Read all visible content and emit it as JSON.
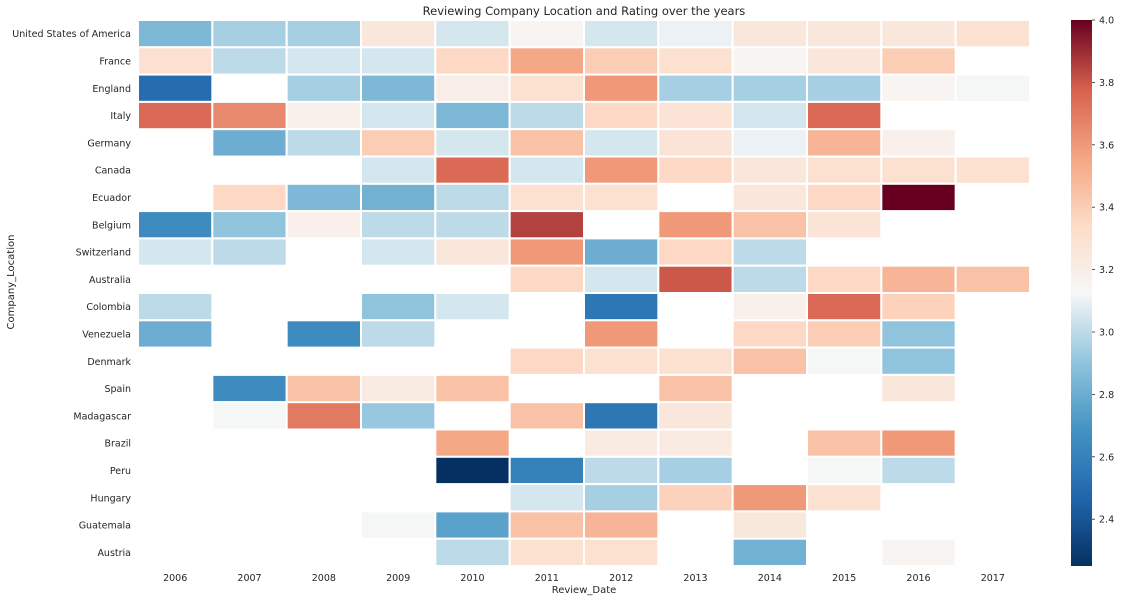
{
  "chart_data": {
    "type": "heatmap",
    "title": "Reviewing Company Location and Rating over the years",
    "xlabel": "Review_Date",
    "ylabel": "Company_Location",
    "x": [
      "2006",
      "2007",
      "2008",
      "2009",
      "2010",
      "2011",
      "2012",
      "2013",
      "2014",
      "2015",
      "2016",
      "2017"
    ],
    "y": [
      "United States of America",
      "France",
      "England",
      "Italy",
      "Germany",
      "Canada",
      "Ecuador",
      "Belgium",
      "Switzerland",
      "Australia",
      "Colombia",
      "Venezuela",
      "Denmark",
      "Spain",
      "Madagascar",
      "Brazil",
      "Peru",
      "Hungary",
      "Guatemala",
      "Austria"
    ],
    "values": [
      [
        2.85,
        2.95,
        2.95,
        3.25,
        3.05,
        3.15,
        3.05,
        3.1,
        3.25,
        3.25,
        3.25,
        3.3
      ],
      [
        3.3,
        3.0,
        3.05,
        3.05,
        3.35,
        3.55,
        3.4,
        3.3,
        3.15,
        3.25,
        3.4,
        null
      ],
      [
        2.5,
        null,
        2.95,
        2.85,
        3.2,
        3.3,
        3.6,
        2.95,
        2.95,
        2.95,
        3.15,
        3.12
      ],
      [
        3.75,
        3.65,
        3.18,
        3.05,
        2.85,
        3.0,
        3.35,
        3.28,
        3.05,
        3.75,
        null,
        null
      ],
      [
        null,
        2.8,
        3.0,
        3.4,
        3.05,
        3.45,
        3.05,
        3.28,
        3.1,
        3.5,
        3.18,
        null
      ],
      [
        null,
        null,
        null,
        3.05,
        3.75,
        3.05,
        3.6,
        3.35,
        3.25,
        3.3,
        3.3,
        3.3
      ],
      [
        null,
        3.35,
        2.85,
        2.82,
        3.0,
        3.3,
        3.3,
        null,
        3.25,
        3.35,
        4.0,
        null
      ],
      [
        2.65,
        2.9,
        3.18,
        3.0,
        3.0,
        3.85,
        null,
        3.6,
        3.45,
        3.28,
        null,
        null
      ],
      [
        3.05,
        3.0,
        null,
        3.05,
        3.25,
        3.6,
        2.8,
        3.35,
        3.0,
        null,
        null,
        null
      ],
      [
        null,
        null,
        null,
        null,
        null,
        3.35,
        3.05,
        3.8,
        3.0,
        3.35,
        3.5,
        3.45
      ],
      [
        3.0,
        null,
        null,
        2.9,
        3.05,
        null,
        2.55,
        null,
        3.18,
        3.75,
        3.38,
        null
      ],
      [
        2.8,
        null,
        2.65,
        3.0,
        null,
        null,
        3.6,
        null,
        3.35,
        3.4,
        2.9,
        null
      ],
      [
        null,
        null,
        null,
        null,
        null,
        3.35,
        3.3,
        3.3,
        3.45,
        3.12,
        2.9,
        null
      ],
      [
        null,
        2.65,
        3.45,
        3.22,
        3.45,
        null,
        null,
        3.45,
        null,
        null,
        3.25,
        null
      ],
      [
        null,
        3.12,
        3.7,
        2.92,
        null,
        3.45,
        2.55,
        3.25,
        null,
        null,
        null,
        null
      ],
      [
        null,
        null,
        null,
        null,
        3.55,
        null,
        3.22,
        3.22,
        null,
        3.45,
        3.6,
        null
      ],
      [
        null,
        null,
        null,
        null,
        2.25,
        2.6,
        3.0,
        2.95,
        null,
        3.12,
        3.0,
        null
      ],
      [
        null,
        null,
        null,
        null,
        null,
        3.05,
        2.95,
        3.38,
        3.6,
        3.3,
        null,
        null
      ],
      [
        null,
        null,
        null,
        3.12,
        2.75,
        3.45,
        3.5,
        null,
        3.25,
        null,
        null,
        null
      ],
      [
        null,
        null,
        null,
        null,
        3.0,
        3.3,
        3.3,
        null,
        2.82,
        null,
        3.15,
        null
      ]
    ],
    "colormap": "RdBu_r",
    "vmin": 2.25,
    "vmax": 4.0,
    "colorbar_ticks": [
      "2.4",
      "2.6",
      "2.8",
      "3.0",
      "3.2",
      "3.4",
      "3.6",
      "3.8",
      "4.0"
    ],
    "colorbar_values": [
      2.4,
      2.6,
      2.8,
      3.0,
      3.2,
      3.4,
      3.6,
      3.8,
      4.0
    ],
    "grid": false,
    "legend": "colorbar-right"
  }
}
